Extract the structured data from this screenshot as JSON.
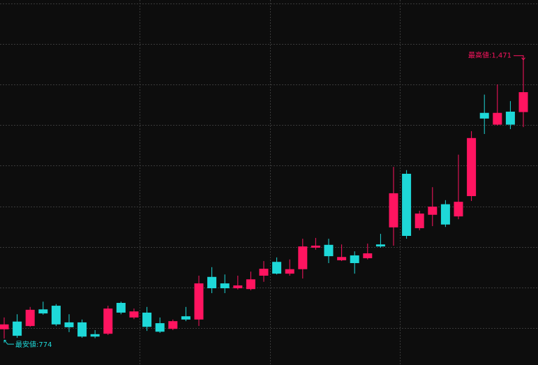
{
  "chart_data": {
    "type": "candlestick",
    "open": [
      797,
      816,
      805,
      846,
      855,
      814,
      814,
      785,
      786,
      862,
      826,
      838,
      812,
      798,
      829,
      821,
      926,
      910,
      898,
      896,
      929,
      963,
      934,
      945,
      998,
      1005,
      967,
      979,
      972,
      1006,
      1048,
      1180,
      1046,
      1079,
      1105,
      1075,
      1125,
      1330,
      1301,
      1333,
      1332
    ],
    "high": [
      826,
      834,
      852,
      865,
      859,
      834,
      821,
      795,
      855,
      865,
      848,
      852,
      826,
      821,
      852,
      929,
      950,
      932,
      929,
      939,
      965,
      974,
      969,
      1020,
      1022,
      1020,
      1006,
      989,
      1008,
      1032,
      1197,
      1189,
      1089,
      1147,
      1115,
      1227,
      1285,
      1375,
      1400,
      1359,
      1471
    ],
    "low": [
      774,
      776,
      803,
      833,
      805,
      790,
      776,
      775,
      783,
      834,
      822,
      793,
      788,
      795,
      817,
      805,
      886,
      886,
      895,
      893,
      914,
      932,
      929,
      922,
      993,
      960,
      965,
      934,
      969,
      998,
      1003,
      1020,
      1041,
      1051,
      1049,
      1068,
      1113,
      1278,
      1299,
      1290,
      1295
    ],
    "close": [
      809,
      781,
      845,
      836,
      809,
      802,
      779,
      779,
      848,
      838,
      841,
      803,
      791,
      817,
      821,
      910,
      898,
      898,
      905,
      920,
      946,
      934,
      945,
      1001,
      1003,
      977,
      975,
      960,
      984,
      1001,
      1132,
      1027,
      1082,
      1099,
      1055,
      1111,
      1268,
      1316,
      1330,
      1301,
      1381
    ],
    "up_color": "#ff1460",
    "down_color": "#1ed8d8",
    "ylim": [
      709,
      1608
    ],
    "yticks": [
      800,
      900,
      1000,
      1100,
      1200,
      1300,
      1400,
      1500,
      1600
    ],
    "grid": true,
    "annotations": [
      {
        "label": "最高値:1,471",
        "value": 1471,
        "color": "#ff1460"
      },
      {
        "label": "最安値:774",
        "value": 774,
        "color": "#1ed8d8"
      }
    ]
  }
}
